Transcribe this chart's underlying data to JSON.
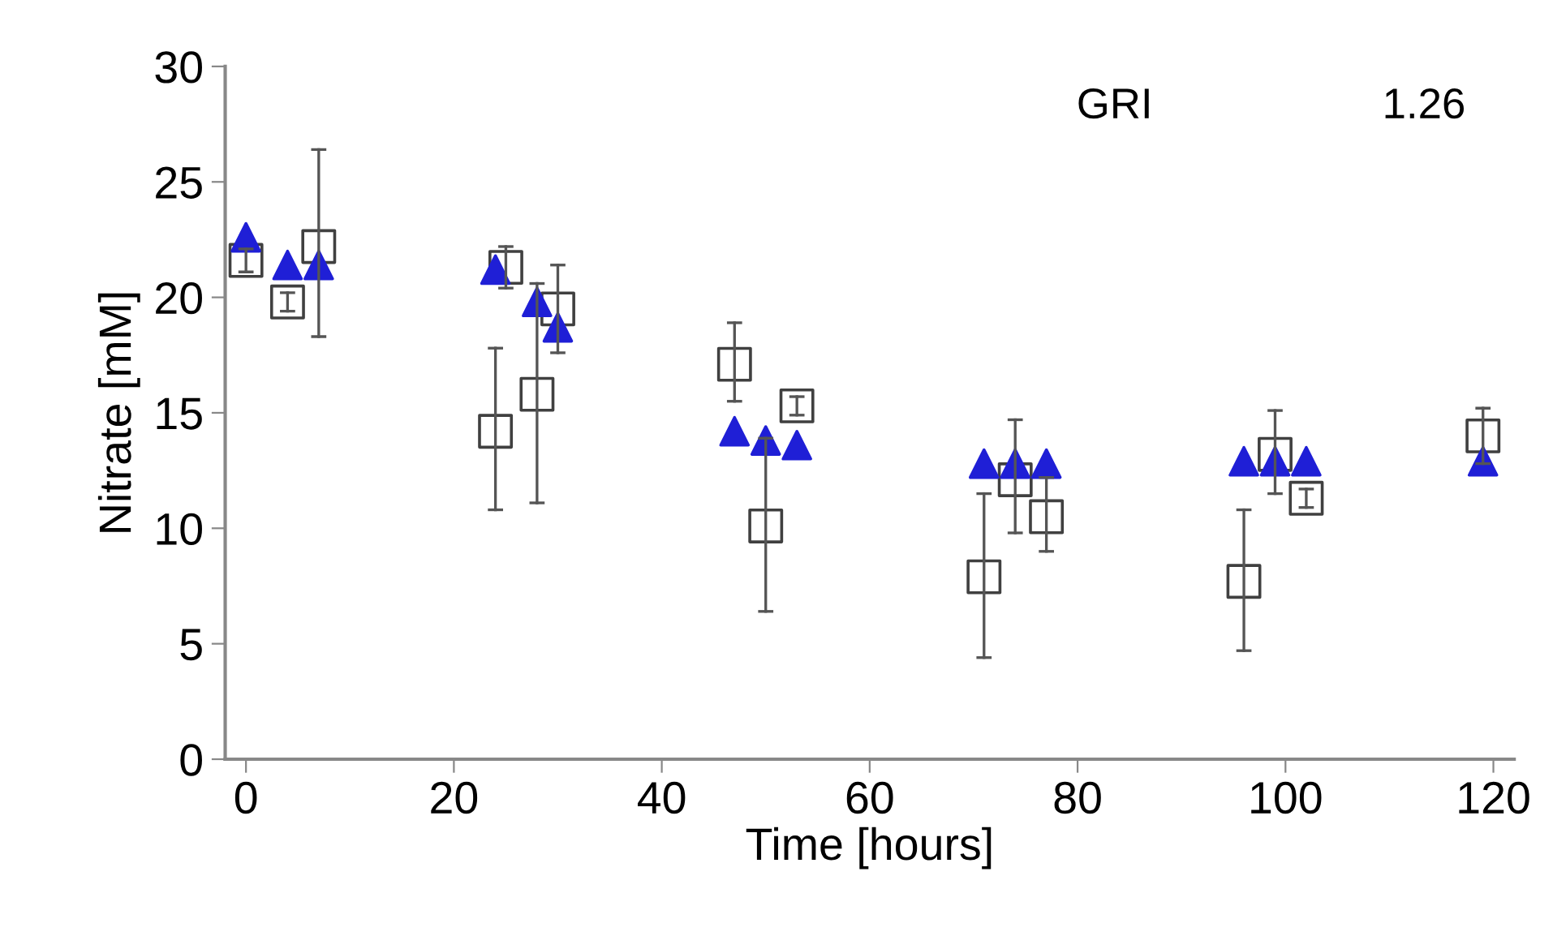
{
  "chart_data": {
    "type": "scatter",
    "xlabel": "Time [hours]",
    "ylabel": "Nitrate [mM]",
    "annotations": [
      "GRI",
      "1.26"
    ],
    "xlim": [
      -2,
      122
    ],
    "ylim": [
      0,
      30
    ],
    "xticks": [
      0,
      20,
      40,
      60,
      80,
      100,
      120
    ],
    "yticks": [
      0,
      5,
      10,
      15,
      20,
      25,
      30
    ],
    "grid": false,
    "legend": false,
    "series": [
      {
        "marker": "square",
        "color": "#404040",
        "x": [
          0,
          4,
          7,
          24,
          25,
          28,
          30,
          47,
          50,
          53,
          71,
          74,
          77,
          96,
          99,
          102,
          119
        ],
        "values": [
          21.6,
          19.8,
          22.2,
          14.2,
          21.3,
          15.8,
          19.5,
          17.1,
          10.1,
          15.3,
          7.9,
          12.1,
          10.5,
          7.7,
          13.2,
          11.3,
          14.0
        ],
        "errors": [
          0.5,
          0.4,
          [
            18.3,
            26.4
          ],
          [
            10.8,
            17.8
          ],
          [
            20.4,
            22.2
          ],
          [
            11.1,
            20.6
          ],
          [
            17.6,
            21.4
          ],
          [
            15.5,
            18.9
          ],
          [
            6.4,
            13.9
          ],
          0.4,
          [
            4.4,
            11.5
          ],
          [
            9.8,
            14.7
          ],
          [
            9.0,
            12.2
          ],
          [
            4.7,
            10.8
          ],
          [
            11.5,
            15.1
          ],
          0.4,
          [
            12.8,
            15.2
          ]
        ]
      },
      {
        "marker": "triangle",
        "color": "#1f1fd6",
        "x": [
          0,
          4,
          7,
          24,
          28,
          30,
          47,
          50,
          53,
          71,
          74,
          77,
          96,
          99,
          102,
          119
        ],
        "values": [
          22.6,
          21.4,
          21.4,
          21.2,
          19.8,
          18.7,
          14.2,
          13.8,
          13.6,
          12.8,
          12.8,
          12.8,
          12.9,
          12.9,
          12.9,
          12.9
        ]
      }
    ]
  }
}
